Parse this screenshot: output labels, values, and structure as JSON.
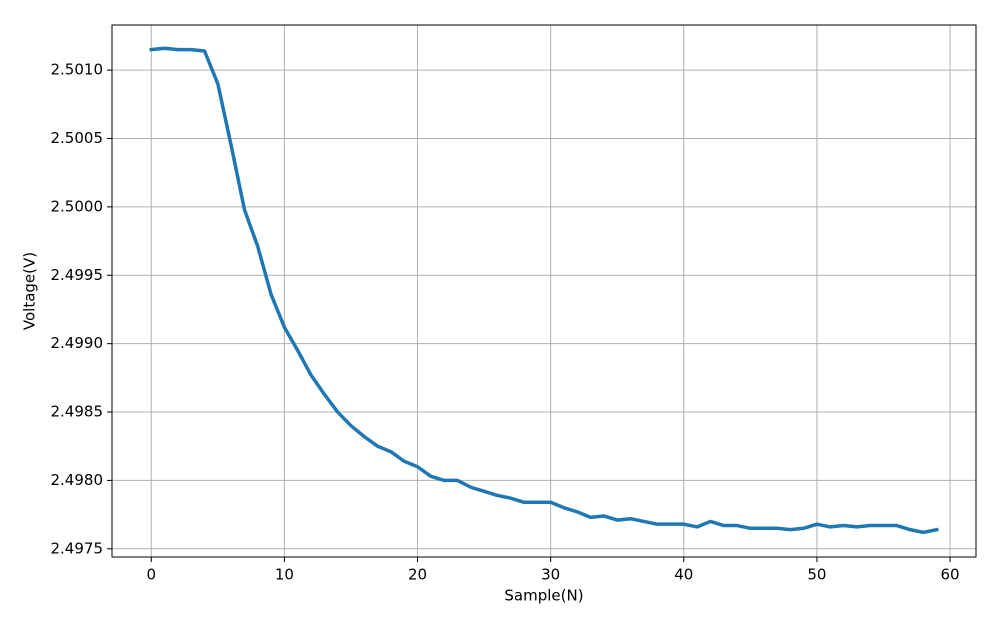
{
  "chart_data": {
    "type": "line",
    "x_label": "Sample(N)",
    "y_label": "Voltage(V)",
    "x": [
      0,
      1,
      2,
      3,
      4,
      5,
      6,
      7,
      8,
      9,
      10,
      11,
      12,
      13,
      14,
      15,
      16,
      17,
      18,
      19,
      20,
      21,
      22,
      23,
      24,
      25,
      26,
      27,
      28,
      29,
      30,
      31,
      32,
      33,
      34,
      35,
      36,
      37,
      38,
      39,
      40,
      41,
      42,
      43,
      44,
      45,
      46,
      47,
      48,
      49,
      50,
      51,
      52,
      53,
      54,
      55,
      56,
      57,
      58,
      59
    ],
    "series": [
      {
        "name": "Voltage",
        "color": "#1f77b4",
        "values": [
          2.50115,
          2.50116,
          2.50115,
          2.50115,
          2.50114,
          2.5009,
          2.50045,
          2.49998,
          2.49971,
          2.49936,
          2.49912,
          2.49895,
          2.49877,
          2.49863,
          2.4985,
          2.4984,
          2.49832,
          2.49825,
          2.49821,
          2.49814,
          2.4981,
          2.49803,
          2.498,
          2.498,
          2.49795,
          2.49792,
          2.49789,
          2.49787,
          2.49784,
          2.49784,
          2.49784,
          2.4978,
          2.49777,
          2.49773,
          2.49774,
          2.49771,
          2.49772,
          2.4977,
          2.49768,
          2.49768,
          2.49768,
          2.49766,
          2.4977,
          2.49767,
          2.49767,
          2.49765,
          2.49765,
          2.49765,
          2.49764,
          2.49765,
          2.49768,
          2.49766,
          2.49767,
          2.49766,
          2.49767,
          2.49767,
          2.49767,
          2.49764,
          2.49762,
          2.49764
        ]
      }
    ],
    "xlim": [
      -2.95,
      61.95
    ],
    "xticks": [
      0,
      10,
      20,
      30,
      40,
      50,
      60
    ],
    "ylim": [
      2.49744,
      2.50133
    ],
    "yticks": [
      {
        "value": 2.4975,
        "label": "2.4975"
      },
      {
        "value": 2.498,
        "label": "2.4980"
      },
      {
        "value": 2.4985,
        "label": "2.4985"
      },
      {
        "value": 2.499,
        "label": "2.4990"
      },
      {
        "value": 2.4995,
        "label": "2.4995"
      },
      {
        "value": 2.5,
        "label": "2.5000"
      },
      {
        "value": 2.5005,
        "label": "2.5005"
      },
      {
        "value": 2.501,
        "label": "2.5010"
      }
    ],
    "grid": true
  }
}
